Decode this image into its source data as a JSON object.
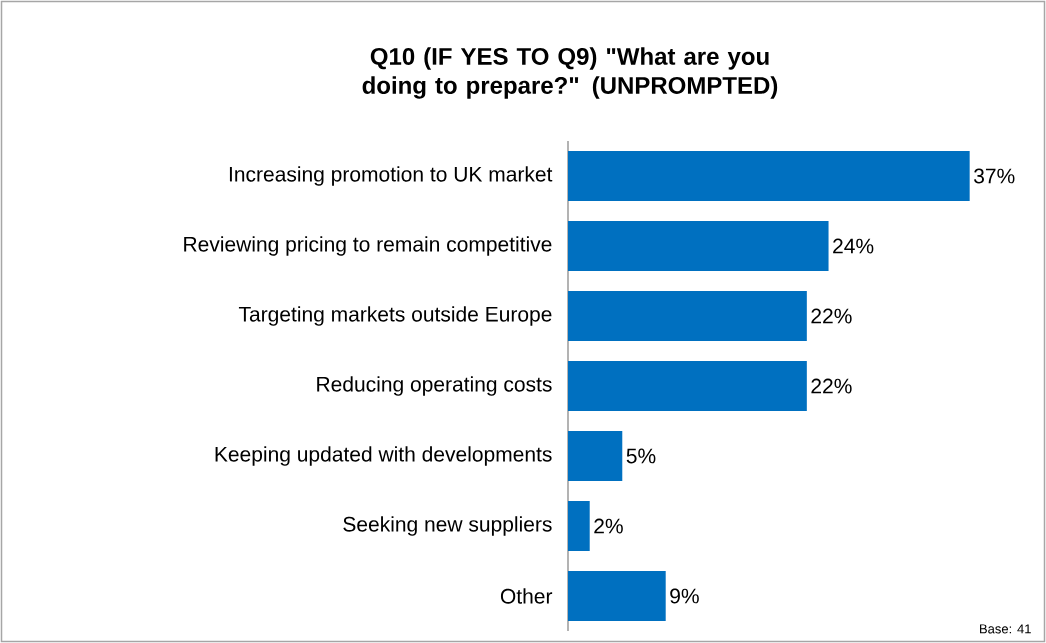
{
  "chart_data": {
    "type": "bar",
    "orientation": "horizontal",
    "title": "Q10 (IF YES TO Q9) \"What are you doing to prepare?\" (UNPROMPTED)",
    "categories": [
      "Increasing promotion to UK market",
      "Reviewing pricing to remain competitive",
      "Targeting markets outside Europe",
      "Reducing operating costs",
      "Keeping updated with developments",
      "Seeking new suppliers",
      "Other"
    ],
    "values": [
      37,
      24,
      22,
      22,
      5,
      2,
      9
    ],
    "value_labels": [
      "37%",
      "24%",
      "22%",
      "22%",
      "5%",
      "2%",
      "9%"
    ],
    "color": "#0070c0",
    "annotations": [
      "Base: 41"
    ]
  }
}
